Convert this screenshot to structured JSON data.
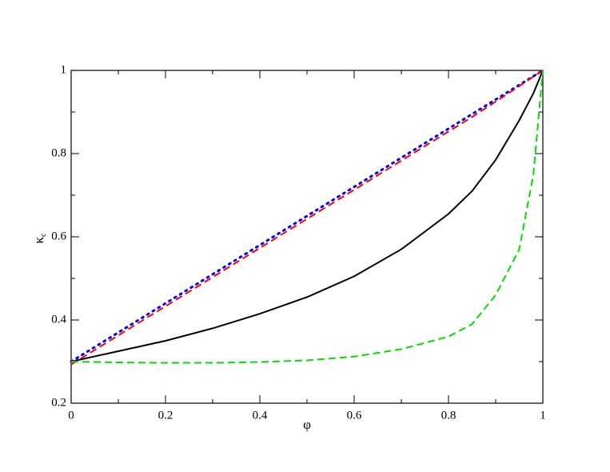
{
  "chart_data": {
    "type": "line",
    "xlabel": "φ",
    "ylabel": "κ",
    "ylabel_sub": "c",
    "x": [
      0,
      0.1,
      0.2,
      0.3,
      0.4,
      0.5,
      0.6,
      0.7,
      0.8,
      0.85,
      0.9,
      0.95,
      0.98,
      1
    ],
    "series": [
      {
        "color": "#0000ff",
        "style": "dotted",
        "values": [
          0.3,
          0.37,
          0.44,
          0.51,
          0.58,
          0.65,
          0.72,
          0.79,
          0.86,
          0.895,
          0.93,
          0.965,
          0.986,
          1
        ]
      },
      {
        "color": "#ff0000",
        "style": "dashed",
        "values": [
          0.293,
          0.363,
          0.433,
          0.503,
          0.573,
          0.643,
          0.713,
          0.783,
          0.853,
          0.888,
          0.925,
          0.962,
          0.985,
          1
        ]
      },
      {
        "color": "#000000",
        "style": "solid",
        "values": [
          0.3,
          0.325,
          0.35,
          0.38,
          0.415,
          0.455,
          0.505,
          0.57,
          0.655,
          0.71,
          0.785,
          0.88,
          0.945,
          1
        ]
      },
      {
        "color": "#00dd00",
        "style": "dashed",
        "values": [
          0.3,
          0.298,
          0.297,
          0.297,
          0.299,
          0.303,
          0.312,
          0.33,
          0.36,
          0.39,
          0.46,
          0.57,
          0.75,
          1
        ]
      }
    ],
    "xlim": [
      0,
      1
    ],
    "ylim": [
      0.2,
      1
    ],
    "xticks": [
      0,
      0.2,
      0.4,
      0.6,
      0.8,
      1
    ],
    "yticks": [
      0.2,
      0.4,
      0.6,
      0.8,
      1
    ],
    "xminorticks": [
      0.1,
      0.3,
      0.5,
      0.7,
      0.9
    ],
    "yminorticks": [
      0.3,
      0.5,
      0.7,
      0.9
    ],
    "grid": false
  }
}
